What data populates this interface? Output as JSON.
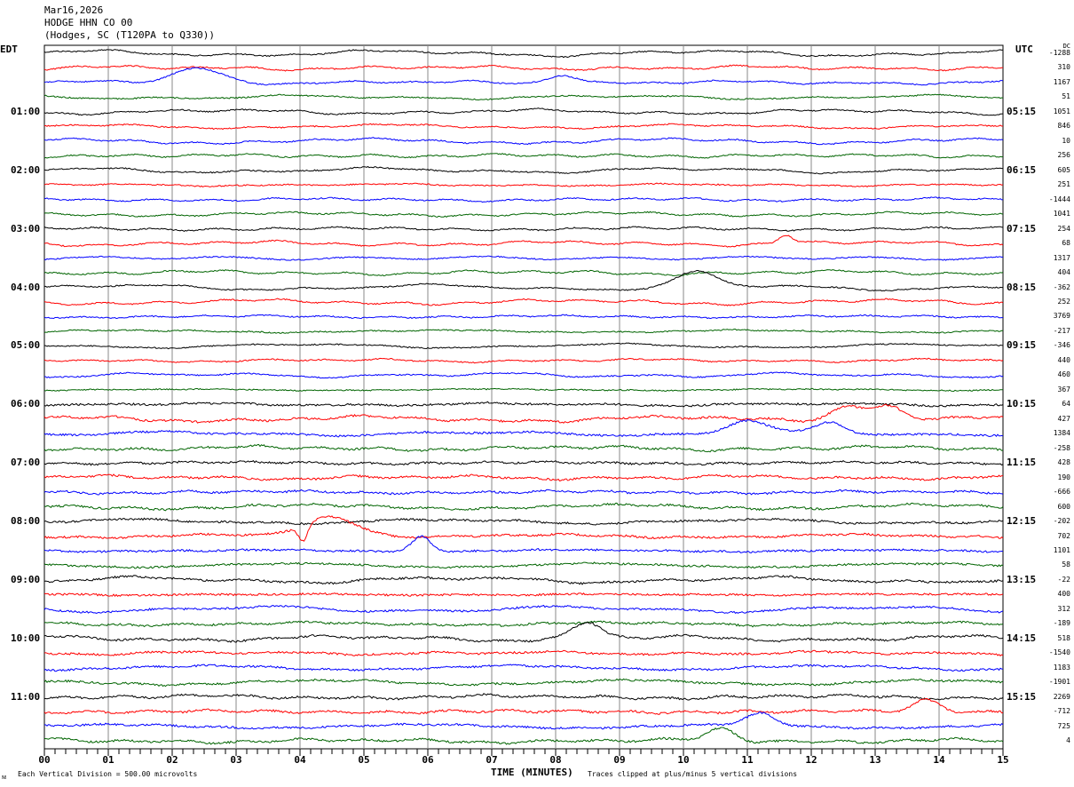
{
  "header": {
    "date": "Mar16,2026",
    "station": "HODGE HHN CO 00",
    "location": "(Hodges, SC (T120PA to Q330))"
  },
  "left_zone": "EDT",
  "right_zone": "UTC",
  "dc_header": "DC",
  "left_times": [
    "01:00",
    "02:00",
    "03:00",
    "04:00",
    "05:00",
    "06:00",
    "07:00",
    "08:00",
    "09:00",
    "10:00",
    "11:00"
  ],
  "right_times": [
    "05:15",
    "06:15",
    "07:15",
    "08:15",
    "09:15",
    "10:15",
    "11:15",
    "12:15",
    "13:15",
    "14:15",
    "15:15"
  ],
  "footer": {
    "scale": "Each Vertical Division =  500.00 microvolts",
    "xlabel": "TIME (MINUTES)",
    "clip_note": "Traces clipped at plus/minus 5 vertical divisions"
  },
  "chart_data": {
    "type": "line",
    "title": "HODGE HHN CO 00 helicorder",
    "xlabel": "TIME (MINUTES)",
    "xlim": [
      0,
      15
    ],
    "x_ticks": [
      "00",
      "01",
      "02",
      "03",
      "04",
      "05",
      "06",
      "07",
      "08",
      "09",
      "10",
      "11",
      "12",
      "13",
      "14",
      "15"
    ],
    "trace_count": 48,
    "trace_minutes": 15,
    "colors": [
      "#000000",
      "#ff0000",
      "#0000ff",
      "#006400"
    ],
    "dc_offsets": [
      "-1288",
      "310",
      "1167",
      "51",
      "1051",
      "846",
      "10",
      "256",
      "605",
      "251",
      "-1444",
      "1041",
      "254",
      "68",
      "1317",
      "404",
      "-362",
      "252",
      "3769",
      "-217",
      "-346",
      "440",
      "460",
      "367",
      "64",
      "427",
      "1384",
      "-258",
      "428",
      "190",
      "-666",
      "600",
      "-202",
      "702",
      "1101",
      "58",
      "-22",
      "400",
      "312",
      "-189",
      "518",
      "-1540",
      "1183",
      "-1901",
      "2269",
      "-712",
      "725",
      "4"
    ],
    "events": [
      {
        "trace": 2,
        "minute": 2.4,
        "amp": -1.0,
        "width": 0.5
      },
      {
        "trace": 2,
        "minute": 8.1,
        "amp": -0.6,
        "width": 0.3
      },
      {
        "trace": 13,
        "minute": 11.6,
        "amp": -0.6,
        "width": 0.15
      },
      {
        "trace": 16,
        "minute": 10.2,
        "amp": -1.0,
        "width": 0.4
      },
      {
        "trace": 25,
        "minute": 12.6,
        "amp": -1.0,
        "width": 0.4
      },
      {
        "trace": 25,
        "minute": 13.2,
        "amp": -0.8,
        "width": 0.3
      },
      {
        "trace": 26,
        "minute": 11.0,
        "amp": -0.9,
        "width": 0.4
      },
      {
        "trace": 26,
        "minute": 12.3,
        "amp": -0.7,
        "width": 0.3
      },
      {
        "trace": 33,
        "minute": 4.5,
        "amp": -1.3,
        "width": 0.6
      },
      {
        "trace": 33,
        "minute": 4.05,
        "amp": 1.1,
        "width": 0.1
      },
      {
        "trace": 34,
        "minute": 5.9,
        "amp": -1.0,
        "width": 0.2
      },
      {
        "trace": 40,
        "minute": 8.5,
        "amp": -1.1,
        "width": 0.3
      },
      {
        "trace": 45,
        "minute": 13.8,
        "amp": -0.8,
        "width": 0.3
      },
      {
        "trace": 46,
        "minute": 11.2,
        "amp": -0.8,
        "width": 0.3
      },
      {
        "trace": 47,
        "minute": 10.6,
        "amp": -0.8,
        "width": 0.3
      }
    ]
  }
}
